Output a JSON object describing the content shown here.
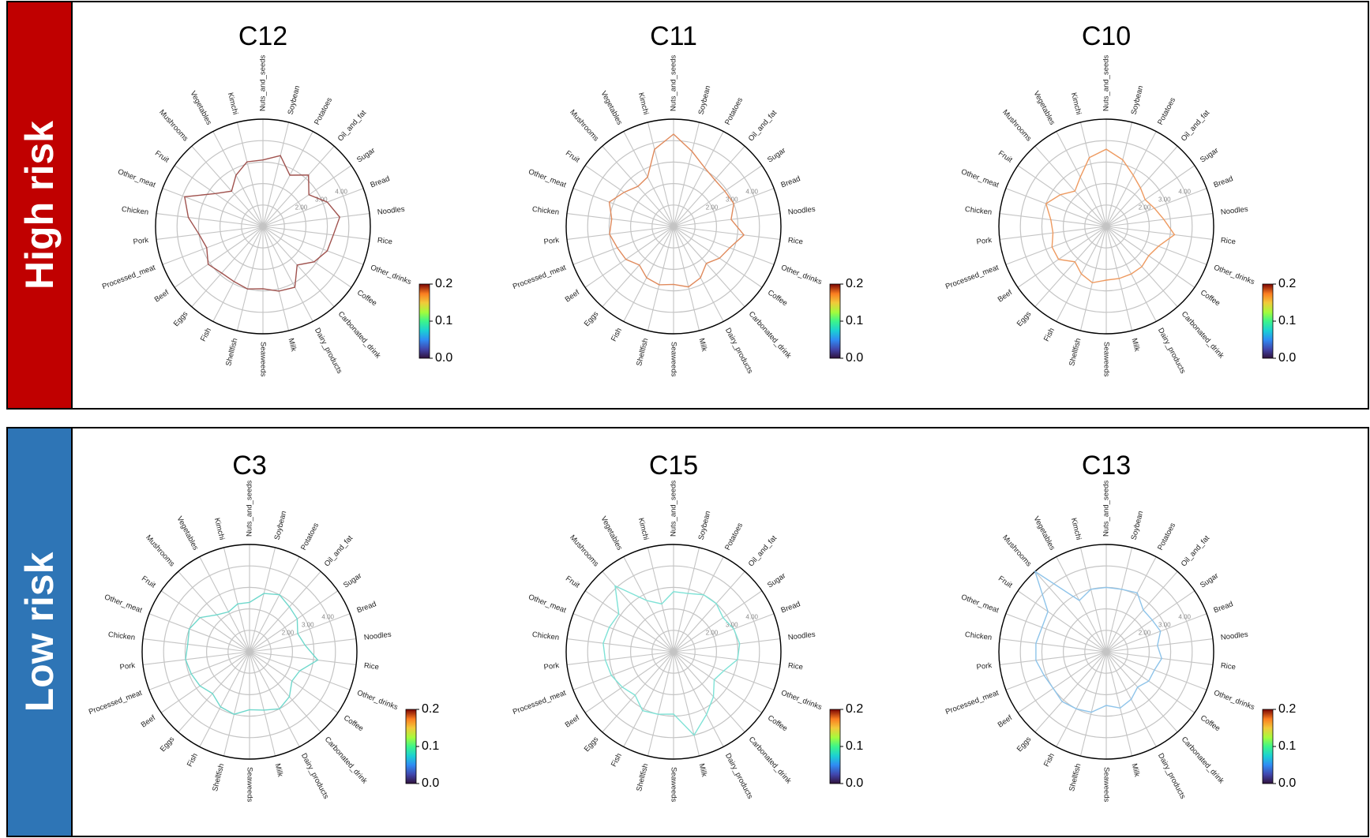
{
  "groups": [
    {
      "label": "High risk",
      "color": "#C00000"
    },
    {
      "label": "Low risk",
      "color": "#2E75B6"
    }
  ],
  "radial_tick_labels": [
    "2.00",
    "3.00",
    "4.00"
  ],
  "colorbar": {
    "colormap": "turbo",
    "min": 0.0,
    "max": 0.2,
    "ticks": [
      "0.0",
      "0.1",
      "0.2"
    ]
  },
  "chart_data": [
    {
      "type": "radar",
      "title": "C12",
      "group": "High risk",
      "line_color": "#A0524E",
      "categories": [
        "Nuts_and_seeds",
        "Soybean",
        "Potatoes",
        "Oil_and_fat",
        "Sugar",
        "Bread",
        "Noodles",
        "Rice",
        "Other_drinks",
        "Coffee",
        "Carbonated_drink",
        "Dairy_products",
        "Milk",
        "Seaweeds",
        "Shellfish",
        "Fish",
        "Eggs",
        "Beef",
        "Processed_meat",
        "Pork",
        "Chicken",
        "Other_meat",
        "Fruit",
        "Mushrooms",
        "Vegetables",
        "Kimchi"
      ],
      "values": [
        3.1,
        3.4,
        2.7,
        3.2,
        2.6,
        3.2,
        3.6,
        3.3,
        3.2,
        2.9,
        2.4,
        3.2,
        3.1,
        2.9,
        3.0,
        2.9,
        2.9,
        3.1,
        2.8,
        3.0,
        3.5,
        3.9,
        2.7,
        2.2,
        2.7,
        3.1
      ],
      "radial_ticks": [
        1,
        2,
        3,
        4,
        5
      ],
      "rlim": [
        0,
        5
      ]
    },
    {
      "type": "radar",
      "title": "C11",
      "group": "High risk",
      "line_color": "#E08A5C",
      "categories": [
        "Nuts_and_seeds",
        "Soybean",
        "Potatoes",
        "Oil_and_fat",
        "Sugar",
        "Bread",
        "Noodles",
        "Rice",
        "Other_drinks",
        "Coffee",
        "Carbonated_drink",
        "Dairy_products",
        "Milk",
        "Seaweeds",
        "Shellfish",
        "Fish",
        "Eggs",
        "Beef",
        "Processed_meat",
        "Pork",
        "Chicken",
        "Other_meat",
        "Fruit",
        "Mushrooms",
        "Vegetables",
        "Kimchi"
      ],
      "values": [
        4.3,
        3.6,
        3.1,
        2.9,
        2.9,
        3.0,
        2.7,
        3.3,
        2.8,
        2.6,
        2.3,
        2.7,
        2.9,
        2.7,
        2.8,
        2.7,
        2.4,
        2.7,
        2.8,
        3.0,
        2.9,
        3.2,
        2.8,
        2.5,
        2.6,
        3.7
      ],
      "radial_ticks": [
        1,
        2,
        3,
        4,
        5
      ],
      "rlim": [
        0,
        5
      ]
    },
    {
      "type": "radar",
      "title": "C10",
      "group": "High risk",
      "line_color": "#EE9A60",
      "categories": [
        "Nuts_and_seeds",
        "Soybean",
        "Potatoes",
        "Oil_and_fat",
        "Sugar",
        "Bread",
        "Noodles",
        "Rice",
        "Other_drinks",
        "Coffee",
        "Carbonated_drink",
        "Dairy_products",
        "Milk",
        "Seaweeds",
        "Shellfish",
        "Fish",
        "Eggs",
        "Beef",
        "Processed_meat",
        "Pork",
        "Chicken",
        "Other_meat",
        "Fruit",
        "Mushrooms",
        "Vegetables",
        "Kimchi"
      ],
      "values": [
        3.6,
        3.2,
        2.7,
        2.4,
        2.2,
        2.4,
        2.7,
        3.2,
        2.6,
        2.4,
        2.5,
        2.5,
        2.5,
        2.5,
        2.7,
        2.5,
        2.2,
        2.7,
        2.7,
        2.5,
        2.6,
        3.0,
        2.6,
        2.2,
        2.6,
        3.3
      ],
      "radial_ticks": [
        1,
        2,
        3,
        4,
        5
      ],
      "rlim": [
        0,
        5
      ]
    },
    {
      "type": "radar",
      "title": "C3",
      "group": "Low risk",
      "line_color": "#6FD8CC",
      "categories": [
        "Nuts_and_seeds",
        "Soybean",
        "Potatoes",
        "Oil_and_fat",
        "Sugar",
        "Bread",
        "Noodles",
        "Rice",
        "Other_drinks",
        "Coffee",
        "Carbonated_drink",
        "Dairy_products",
        "Milk",
        "Seaweeds",
        "Shellfish",
        "Fish",
        "Eggs",
        "Beef",
        "Processed_meat",
        "Pork",
        "Chicken",
        "Other_meat",
        "Fruit",
        "Mushrooms",
        "Vegetables",
        "Kimchi"
      ],
      "values": [
        2.3,
        2.8,
        3.0,
        2.8,
        2.7,
        2.4,
        2.6,
        3.2,
        2.5,
        2.4,
        2.8,
        3.0,
        2.8,
        2.7,
        3.0,
        2.9,
        2.6,
        2.8,
        2.9,
        3.0,
        2.9,
        3.0,
        2.8,
        2.3,
        2.1,
        2.3
      ],
      "radial_ticks": [
        1,
        2,
        3,
        4,
        5
      ],
      "rlim": [
        0,
        5
      ]
    },
    {
      "type": "radar",
      "title": "C15",
      "group": "Low risk",
      "line_color": "#7EE2D6",
      "categories": [
        "Nuts_and_seeds",
        "Soybean",
        "Potatoes",
        "Oil_and_fat",
        "Sugar",
        "Bread",
        "Noodles",
        "Rice",
        "Other_drinks",
        "Coffee",
        "Carbonated_drink",
        "Dairy_products",
        "Milk",
        "Seaweeds",
        "Shellfish",
        "Fish",
        "Eggs",
        "Beef",
        "Processed_meat",
        "Pork",
        "Chicken",
        "Other_meat",
        "Fruit",
        "Mushrooms",
        "Vegetables",
        "Kimchi"
      ],
      "values": [
        2.8,
        2.8,
        3.0,
        3.0,
        2.8,
        3.0,
        3.1,
        3.0,
        2.5,
        2.3,
        2.8,
        3.3,
        4.0,
        2.9,
        3.0,
        3.1,
        2.7,
        2.9,
        3.1,
        3.2,
        3.3,
        3.2,
        3.1,
        4.1,
        2.7,
        2.3
      ],
      "radial_ticks": [
        1,
        2,
        3,
        4,
        5
      ],
      "rlim": [
        0,
        5
      ]
    },
    {
      "type": "radar",
      "title": "C13",
      "group": "Low risk",
      "line_color": "#8EC4EA",
      "categories": [
        "Nuts_and_seeds",
        "Soybean",
        "Potatoes",
        "Oil_and_fat",
        "Sugar",
        "Bread",
        "Noodles",
        "Rice",
        "Other_drinks",
        "Coffee",
        "Carbonated_drink",
        "Dairy_products",
        "Milk",
        "Seaweeds",
        "Shellfish",
        "Fish",
        "Eggs",
        "Beef",
        "Processed_meat",
        "Pork",
        "Chicken",
        "Other_meat",
        "Fruit",
        "Mushrooms",
        "Vegetables",
        "Kimchi"
      ],
      "values": [
        3.0,
        3.0,
        3.1,
        2.6,
        2.6,
        2.7,
        2.4,
        2.6,
        2.4,
        2.4,
        2.2,
        2.5,
        2.7,
        2.5,
        2.9,
        3.0,
        3.1,
        3.0,
        3.1,
        3.3,
        3.3,
        3.2,
        3.3,
        5.0,
        2.7,
        3.0
      ],
      "radial_ticks": [
        1,
        2,
        3,
        4,
        5
      ],
      "rlim": [
        0,
        5
      ]
    }
  ]
}
